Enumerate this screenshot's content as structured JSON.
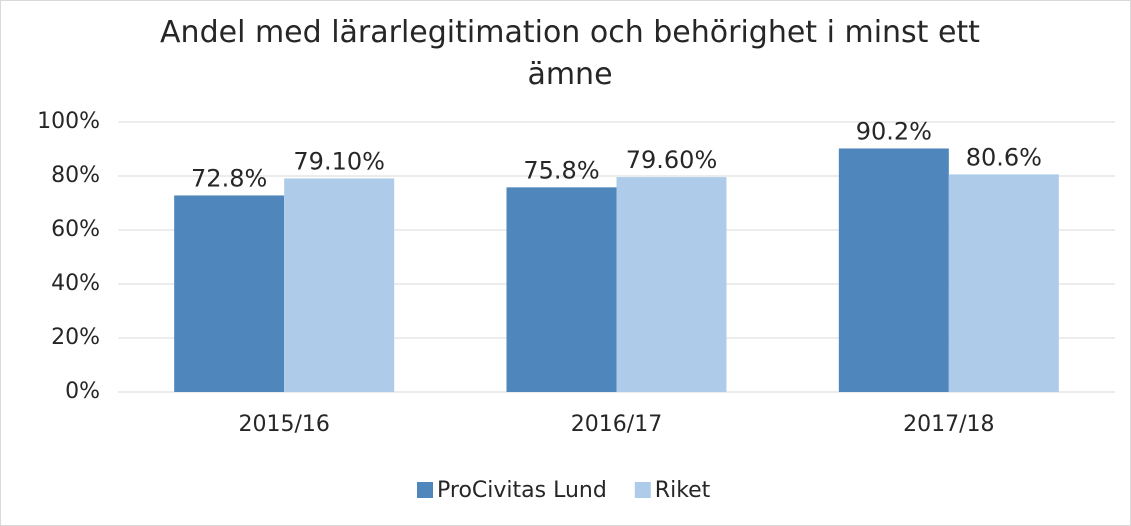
{
  "chart_data": {
    "type": "bar",
    "title": "Andel med lärarlegitimation och behörighet i minst ett ämne",
    "categories": [
      "2015/16",
      "2016/17",
      "2017/18"
    ],
    "series": [
      {
        "name": "ProCivitas Lund",
        "color": "#4f87bd",
        "values": [
          72.8,
          75.8,
          90.2
        ],
        "value_labels": [
          "72.8%",
          "75.8%",
          "90.2%"
        ]
      },
      {
        "name": "Riket",
        "color": "#aecce9",
        "values": [
          79.1,
          79.6,
          80.6
        ],
        "value_labels": [
          "79.10%",
          "79.60%",
          "80.6%"
        ]
      }
    ],
    "ylim": [
      0,
      100
    ],
    "yticks": [
      {
        "value": 0,
        "label": "0%"
      },
      {
        "value": 20,
        "label": "20%"
      },
      {
        "value": 40,
        "label": "40%"
      },
      {
        "value": 60,
        "label": "60%"
      },
      {
        "value": 80,
        "label": "80%"
      },
      {
        "value": 100,
        "label": "100%"
      }
    ],
    "grid": true,
    "legend": "bottom"
  }
}
